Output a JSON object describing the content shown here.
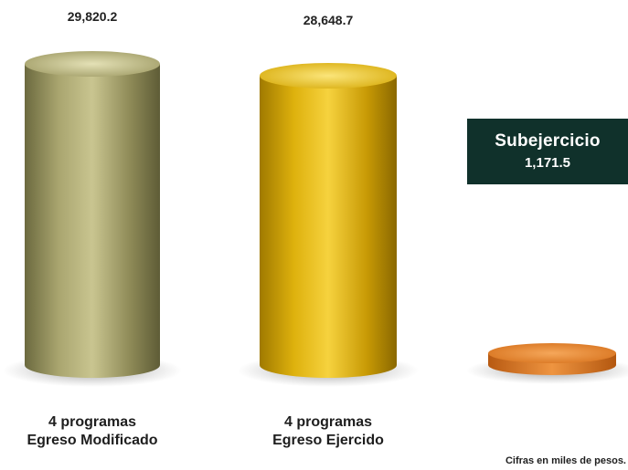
{
  "chart_data": {
    "type": "bar",
    "units_note": "Cifras en miles de pesos.",
    "bars": [
      {
        "value": 29820.2,
        "value_label": "29,820.2",
        "label_line1": "4 programas",
        "label_line2": "Egreso Modificado",
        "color": "#9a9660"
      },
      {
        "value": 28648.7,
        "value_label": "28,648.7",
        "label_line1": "4 programas",
        "label_line2": "Egreso Ejercido",
        "color": "#d7ac08"
      },
      {
        "value": 1171.5,
        "value_label": "1,171.5",
        "label_line1": "",
        "label_line2": "",
        "color": "#d8741f"
      }
    ],
    "callout": {
      "title": "Subejercicio",
      "value": "1,171.5",
      "background": "#10312b"
    }
  }
}
